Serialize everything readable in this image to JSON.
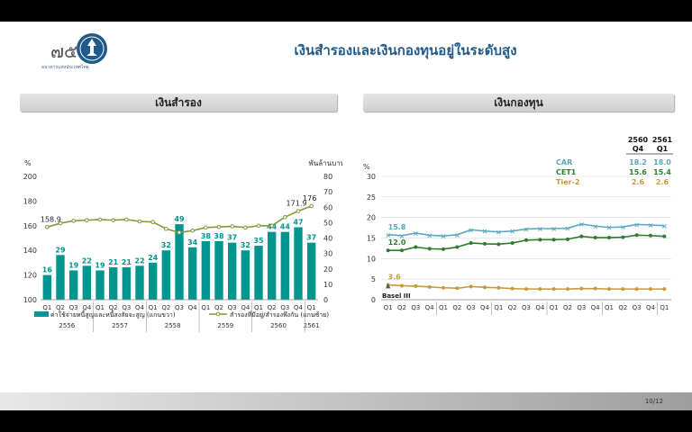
{
  "header": {
    "title": "เงินสำรองและเงินกองทุนอยู่ในระดับสูง",
    "logo_text": "ธนาคารแห่งประเทศไทย"
  },
  "sections": {
    "left_title": "เงินสำรอง",
    "right_title": "เงินกองทุน"
  },
  "page_number": "10/12",
  "colors": {
    "teal": "#00968f",
    "olive": "#7f9a3a",
    "car": "#5aa7c0",
    "cet1": "#2e7d2e",
    "tier2": "#c89b3a",
    "basel": "#555555"
  },
  "chart_data": [
    {
      "type": "bar",
      "quarters": [
        "Q1",
        "Q2",
        "Q3",
        "Q4",
        "Q1",
        "Q2",
        "Q3",
        "Q4",
        "Q1",
        "Q2",
        "Q3",
        "Q4",
        "Q1",
        "Q2",
        "Q3",
        "Q4",
        "Q1",
        "Q2",
        "Q3",
        "Q4",
        "Q1"
      ],
      "years": [
        {
          "label": "2556",
          "from": 0,
          "to": 3
        },
        {
          "label": "2557",
          "from": 4,
          "to": 7
        },
        {
          "label": "2558",
          "from": 8,
          "to": 11
        },
        {
          "label": "2559",
          "from": 12,
          "to": 15
        },
        {
          "label": "2560",
          "from": 16,
          "to": 19
        },
        {
          "label": "2561",
          "from": 20,
          "to": 20
        }
      ],
      "bar_series": {
        "name": "ค่าใช้จ่ายหนี้สูญและหนี้สงสัยจะสูญ (แกนขวา)",
        "values": [
          16,
          29,
          19,
          22,
          19,
          21,
          21,
          22,
          24,
          32,
          49,
          34,
          38,
          38,
          37,
          32,
          35,
          44,
          44,
          47,
          37
        ]
      },
      "line_series": {
        "name": "สำรองที่มีอยู่/สำรองพึงกัน (แกนซ้าย)",
        "values": [
          158.9,
          162,
          164,
          164.5,
          165,
          164.5,
          165,
          163.5,
          163,
          157.5,
          154.5,
          156,
          158.5,
          159,
          159.5,
          158.5,
          160,
          160,
          167,
          171.9,
          176
        ],
        "labels": {
          "0": "158.9",
          "19": "171.9",
          "20": "176"
        }
      },
      "left_axis": {
        "label": "%",
        "ticks": [
          100,
          120,
          140,
          160,
          180,
          200
        ],
        "min": 100,
        "max": 200
      },
      "right_axis": {
        "label": "พันล้านบาท",
        "ticks": [
          0,
          10,
          20,
          30,
          40,
          50,
          60,
          70,
          80
        ],
        "min": 0,
        "max": 80
      },
      "grid": false,
      "legend_position": "bottom"
    },
    {
      "type": "line",
      "quarters": [
        "Q1",
        "Q2",
        "Q3",
        "Q4",
        "Q1",
        "Q2",
        "Q3",
        "Q4",
        "Q1",
        "Q2",
        "Q3",
        "Q4",
        "Q1",
        "Q2",
        "Q3",
        "Q4",
        "Q1",
        "Q2",
        "Q3",
        "Q4",
        "Q1"
      ],
      "years": [
        {
          "label": "2556",
          "from": 0,
          "to": 3
        },
        {
          "label": "2557",
          "from": 4,
          "to": 7
        },
        {
          "label": "2558",
          "from": 8,
          "to": 11
        },
        {
          "label": "2559",
          "from": 12,
          "to": 15
        },
        {
          "label": "2560",
          "from": 16,
          "to": 19
        },
        {
          "label": "2561",
          "from": 20,
          "to": 20
        }
      ],
      "y_axis": {
        "label": "%",
        "ticks": [
          0,
          5,
          10,
          15,
          20,
          25,
          30
        ],
        "min": 0,
        "max": 30
      },
      "series": [
        {
          "name": "CAR",
          "values": [
            15.8,
            15.6,
            16.2,
            15.7,
            15.5,
            15.8,
            17.0,
            16.7,
            16.5,
            16.7,
            17.2,
            17.3,
            17.3,
            17.4,
            18.4,
            17.9,
            17.6,
            17.7,
            18.3,
            18.2,
            18.0
          ],
          "first_label": "15.8"
        },
        {
          "name": "CET1",
          "values": [
            12.0,
            12.0,
            12.8,
            12.4,
            12.3,
            12.8,
            13.8,
            13.6,
            13.5,
            13.8,
            14.5,
            14.6,
            14.6,
            14.7,
            15.4,
            15.1,
            15.1,
            15.2,
            15.7,
            15.6,
            15.4
          ],
          "first_label": "12.0"
        },
        {
          "name": "Tier-2",
          "values": [
            3.6,
            3.4,
            3.3,
            3.1,
            2.9,
            2.8,
            3.2,
            3.0,
            2.9,
            2.7,
            2.6,
            2.6,
            2.6,
            2.6,
            2.7,
            2.7,
            2.6,
            2.6,
            2.6,
            2.6,
            2.6
          ],
          "first_label": "3.6"
        }
      ],
      "basel_marker": {
        "label": "Basel III",
        "index": 0
      },
      "table": {
        "columns": [
          {
            "year": "2560",
            "q": "Q4"
          },
          {
            "year": "2561",
            "q": "Q1"
          }
        ],
        "rows": [
          {
            "name": "CAR",
            "values": [
              "18.2",
              "18.0"
            ]
          },
          {
            "name": "CET1",
            "values": [
              "15.6",
              "15.4"
            ]
          },
          {
            "name": "Tier-2",
            "values": [
              "2.6",
              "2.6"
            ]
          }
        ]
      },
      "grid": true
    }
  ]
}
